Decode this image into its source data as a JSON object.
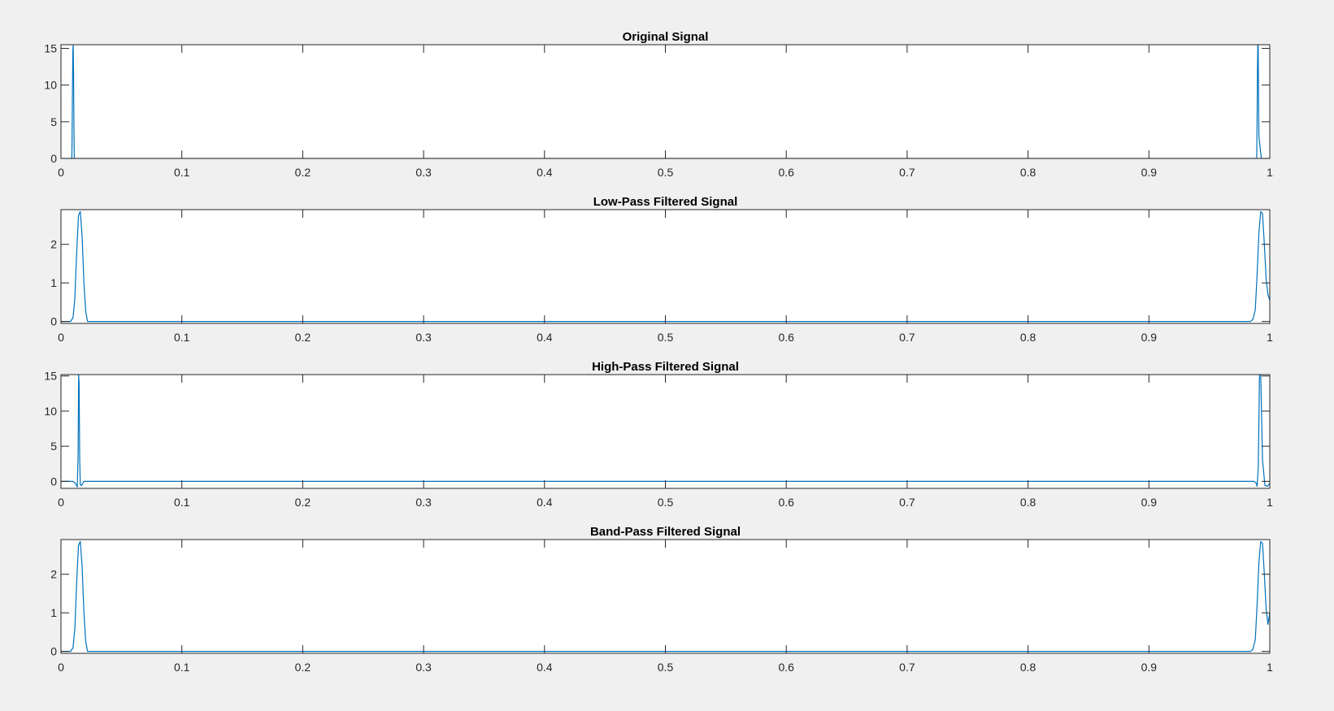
{
  "colors": {
    "figure_background": "#f0f0f0",
    "axes_background": "#ffffff",
    "axes_edge": "#262626",
    "series_line": "#0072bd"
  },
  "chart_data": [
    {
      "type": "line",
      "title": "Original Signal",
      "xlabel": "",
      "ylabel": "",
      "xlim": [
        0,
        1
      ],
      "ylim": [
        0,
        15.5
      ],
      "xticks": [
        0,
        0.1,
        0.2,
        0.3,
        0.4,
        0.5,
        0.6,
        0.7,
        0.8,
        0.9,
        1
      ],
      "xtick_labels": [
        "0",
        "0.1",
        "0.2",
        "0.3",
        "0.4",
        "0.5",
        "0.6",
        "0.7",
        "0.8",
        "0.9",
        "1"
      ],
      "yticks": [
        0,
        5,
        10,
        15
      ],
      "ytick_labels": [
        "0",
        "5",
        "10",
        "15"
      ],
      "grid": false,
      "series": [
        {
          "x": [
            0,
            0.009,
            0.0092,
            0.0095,
            0.0098,
            0.0101,
            0.0104,
            0.0107,
            0.011,
            0.5,
            0.9886,
            0.9892,
            0.9895,
            0.9898,
            0.9901,
            0.9904,
            0.9907,
            0.991,
            0.993,
            1
          ],
          "y": [
            0,
            0,
            3,
            9,
            14.5,
            15.5,
            12,
            5,
            0,
            0,
            0,
            0,
            5,
            12,
            15.5,
            15.5,
            9,
            3,
            0,
            0
          ]
        }
      ]
    },
    {
      "type": "line",
      "title": "Low-Pass Filtered Signal",
      "xlabel": "",
      "ylabel": "",
      "xlim": [
        0,
        1
      ],
      "ylim": [
        -0.05,
        2.9
      ],
      "xticks": [
        0,
        0.1,
        0.2,
        0.3,
        0.4,
        0.5,
        0.6,
        0.7,
        0.8,
        0.9,
        1
      ],
      "xtick_labels": [
        "0",
        "0.1",
        "0.2",
        "0.3",
        "0.4",
        "0.5",
        "0.6",
        "0.7",
        "0.8",
        "0.9",
        "1"
      ],
      "yticks": [
        0,
        1,
        2
      ],
      "ytick_labels": [
        "0",
        "1",
        "2"
      ],
      "grid": false,
      "series": [
        {
          "x": [
            0,
            0.008,
            0.01,
            0.0115,
            0.013,
            0.0145,
            0.016,
            0.0175,
            0.019,
            0.0205,
            0.022,
            0.5,
            0.984,
            0.986,
            0.988,
            0.9895,
            0.991,
            0.9925,
            0.994,
            0.9955,
            0.997,
            0.9985,
            1
          ],
          "y": [
            0,
            0,
            0.1,
            0.6,
            1.8,
            2.75,
            2.85,
            2.2,
            1.0,
            0.25,
            0,
            0,
            0,
            0.05,
            0.3,
            1.2,
            2.3,
            2.85,
            2.8,
            2.0,
            1.1,
            0.7,
            0.55
          ]
        }
      ]
    },
    {
      "type": "line",
      "title": "High-Pass Filtered Signal",
      "xlabel": "",
      "ylabel": "",
      "xlim": [
        0,
        1
      ],
      "ylim": [
        -1,
        15.2
      ],
      "xticks": [
        0,
        0.1,
        0.2,
        0.3,
        0.4,
        0.5,
        0.6,
        0.7,
        0.8,
        0.9,
        1
      ],
      "xtick_labels": [
        "0",
        "0.1",
        "0.2",
        "0.3",
        "0.4",
        "0.5",
        "0.6",
        "0.7",
        "0.8",
        "0.9",
        "1"
      ],
      "yticks": [
        0,
        5,
        10,
        15
      ],
      "ytick_labels": [
        "0",
        "5",
        "10",
        "15"
      ],
      "grid": false,
      "series": [
        {
          "x": [
            0,
            0.01,
            0.012,
            0.0135,
            0.0142,
            0.0146,
            0.015,
            0.0155,
            0.016,
            0.017,
            0.019,
            0.5,
            0.987,
            0.9885,
            0.9895,
            0.9905,
            0.9915,
            0.9925,
            0.994,
            0.996,
            0.998,
            1
          ],
          "y": [
            0,
            0,
            -0.3,
            -0.8,
            4,
            15.2,
            14,
            3,
            -0.5,
            -0.6,
            0,
            0,
            0,
            -0.2,
            -0.7,
            2,
            15.2,
            15.2,
            3,
            -0.6,
            -0.7,
            -0.3
          ]
        }
      ]
    },
    {
      "type": "line",
      "title": "Band-Pass Filtered Signal",
      "xlabel": "",
      "ylabel": "",
      "xlim": [
        0,
        1
      ],
      "ylim": [
        -0.05,
        2.9
      ],
      "xticks": [
        0,
        0.1,
        0.2,
        0.3,
        0.4,
        0.5,
        0.6,
        0.7,
        0.8,
        0.9,
        1
      ],
      "xtick_labels": [
        "0",
        "0.1",
        "0.2",
        "0.3",
        "0.4",
        "0.5",
        "0.6",
        "0.7",
        "0.8",
        "0.9",
        "1"
      ],
      "yticks": [
        0,
        1,
        2
      ],
      "ytick_labels": [
        "0",
        "1",
        "2"
      ],
      "grid": false,
      "series": [
        {
          "x": [
            0,
            0.008,
            0.01,
            0.0115,
            0.013,
            0.0145,
            0.016,
            0.0175,
            0.019,
            0.0205,
            0.022,
            0.5,
            0.984,
            0.986,
            0.988,
            0.9895,
            0.991,
            0.9925,
            0.994,
            0.9955,
            0.997,
            0.9985,
            1
          ],
          "y": [
            0,
            0,
            0.1,
            0.6,
            1.8,
            2.75,
            2.85,
            2.2,
            1.0,
            0.25,
            0,
            0,
            0,
            0.05,
            0.3,
            1.2,
            2.3,
            2.85,
            2.8,
            2.0,
            1.1,
            0.7,
            1.0
          ]
        }
      ]
    }
  ]
}
